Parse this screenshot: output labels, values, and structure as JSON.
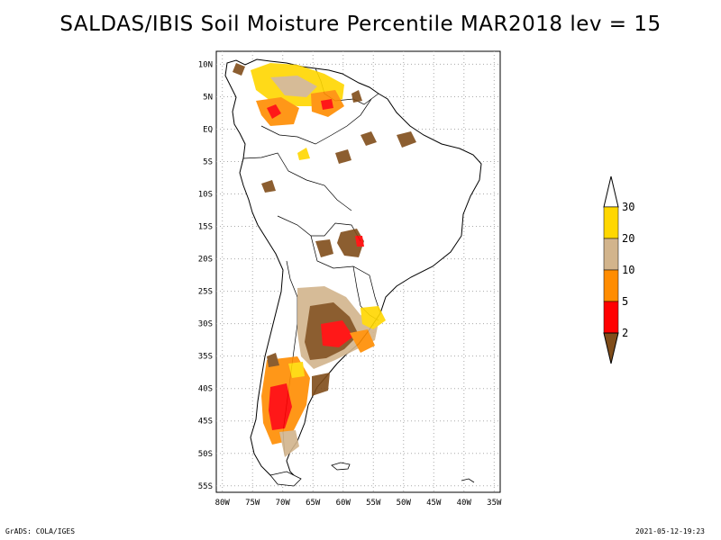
{
  "title": "SALDAS/IBIS Soil Moisture Percentile MAR2018 lev = 15",
  "map": {
    "lat_labels": [
      "10N",
      "5N",
      "EQ",
      "5S",
      "10S",
      "15S",
      "20S",
      "25S",
      "30S",
      "35S",
      "40S",
      "45S",
      "50S",
      "55S"
    ],
    "lat_values": [
      10,
      5,
      0,
      -5,
      -10,
      -15,
      -20,
      -25,
      -30,
      -35,
      -40,
      -45,
      -50,
      -55
    ],
    "lon_labels": [
      "80W",
      "75W",
      "70W",
      "65W",
      "60W",
      "55W",
      "50W",
      "45W",
      "40W",
      "35W"
    ],
    "lon_values": [
      -80,
      -75,
      -70,
      -65,
      -60,
      -55,
      -50,
      -45,
      -40,
      -35
    ],
    "lon_range": [
      -81,
      -34
    ],
    "lat_range": [
      -56,
      12
    ],
    "grid": true
  },
  "colorbar": {
    "levels": [
      "2",
      "5",
      "10",
      "20",
      "30"
    ],
    "colors": [
      "#804d1a",
      "#ff0000",
      "#ff8c00",
      "#d2b48c",
      "#ffd700",
      "#ffffff"
    ]
  },
  "footer": {
    "left": "GrADS: COLA/IGES",
    "right": "2021-05-12-19:23"
  }
}
